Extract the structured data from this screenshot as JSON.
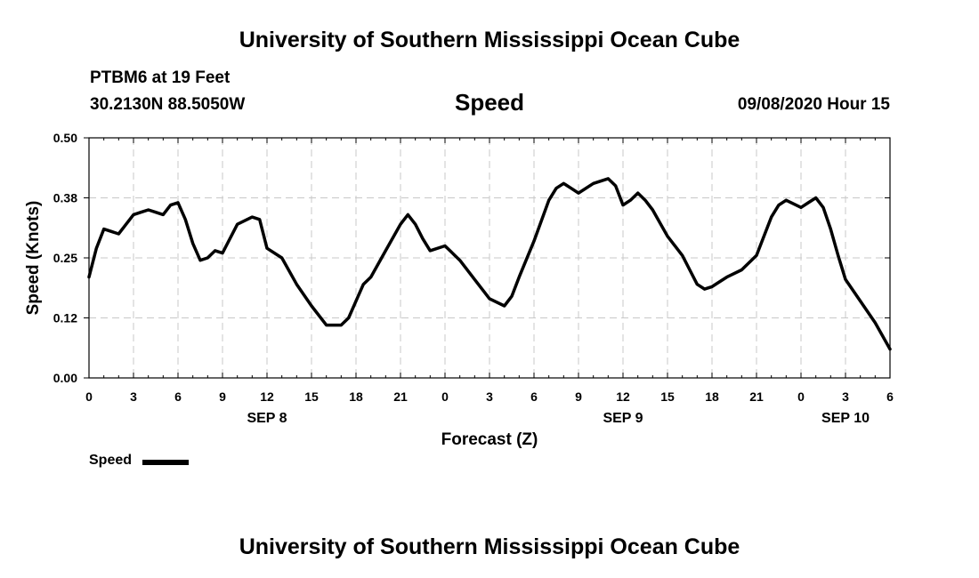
{
  "page": {
    "title_top": "University of Southern Mississippi Ocean Cube",
    "title_bottom": "University of Southern Mississippi Ocean Cube",
    "station": "PTBM6 at 19 Feet",
    "coords": "30.2130N 88.5050W",
    "variable": "Speed",
    "timestamp": "09/08/2020 Hour 15"
  },
  "legend": {
    "label": "Speed",
    "color": "#000000"
  },
  "chart_data": {
    "type": "line",
    "title": "Speed",
    "xlabel": "Forecast (Z)",
    "ylabel": "Speed (Knots)",
    "xlim": [
      0,
      54
    ],
    "ylim": [
      0,
      0.5
    ],
    "grid": true,
    "y_ticks": [
      0.0,
      0.125,
      0.25,
      0.375,
      0.5
    ],
    "y_tick_labels": [
      "0.00",
      "0.12",
      "0.25",
      "0.38",
      "0.50"
    ],
    "x_ticks": [
      0,
      3,
      6,
      9,
      12,
      15,
      18,
      21,
      24,
      27,
      30,
      33,
      36,
      39,
      42,
      45,
      48,
      51,
      54
    ],
    "x_tick_labels": [
      "0",
      "3",
      "6",
      "9",
      "12",
      "15",
      "18",
      "21",
      "0",
      "3",
      "6",
      "9",
      "12",
      "15",
      "18",
      "21",
      "0",
      "3",
      "6"
    ],
    "day_labels": [
      {
        "x": 12,
        "label": "SEP 8"
      },
      {
        "x": 36,
        "label": "SEP 9"
      },
      {
        "x": 51,
        "label": "SEP 10"
      }
    ],
    "series": [
      {
        "name": "Speed",
        "x": [
          0,
          0.5,
          1,
          2,
          3,
          3.5,
          4,
          4.5,
          5,
          5.5,
          6,
          6.5,
          7,
          7.5,
          8,
          8.5,
          9,
          10,
          11,
          11.5,
          12,
          13,
          14,
          15,
          16,
          17,
          17.5,
          18,
          18.5,
          19,
          20,
          21,
          21.5,
          22,
          22.5,
          23,
          24,
          25,
          26,
          27,
          28,
          28.5,
          29,
          30,
          31,
          31.5,
          32,
          32.5,
          33,
          34,
          35,
          35.5,
          36,
          36.5,
          37,
          37.5,
          38,
          39,
          40,
          40.5,
          41,
          41.5,
          42,
          42.5,
          43,
          44,
          45,
          46,
          46.5,
          47,
          48,
          48.5,
          49,
          49.5,
          50,
          50.5,
          51,
          52,
          53,
          54
        ],
        "values": [
          0.21,
          0.27,
          0.31,
          0.3,
          0.34,
          0.345,
          0.35,
          0.345,
          0.34,
          0.36,
          0.365,
          0.33,
          0.28,
          0.245,
          0.25,
          0.265,
          0.26,
          0.32,
          0.335,
          0.33,
          0.27,
          0.25,
          0.195,
          0.15,
          0.11,
          0.11,
          0.125,
          0.16,
          0.195,
          0.21,
          0.265,
          0.32,
          0.34,
          0.32,
          0.29,
          0.265,
          0.275,
          0.245,
          0.205,
          0.165,
          0.15,
          0.17,
          0.21,
          0.285,
          0.37,
          0.395,
          0.405,
          0.395,
          0.385,
          0.405,
          0.415,
          0.4,
          0.36,
          0.37,
          0.385,
          0.37,
          0.35,
          0.295,
          0.255,
          0.225,
          0.195,
          0.185,
          0.19,
          0.2,
          0.21,
          0.225,
          0.255,
          0.335,
          0.36,
          0.37,
          0.355,
          0.365,
          0.375,
          0.355,
          0.31,
          0.255,
          0.205,
          0.16,
          0.115,
          0.06
        ]
      }
    ]
  }
}
